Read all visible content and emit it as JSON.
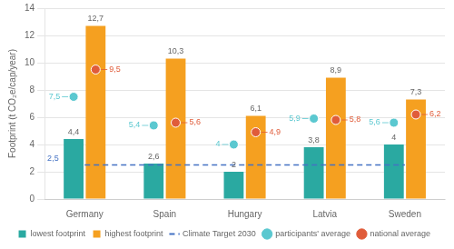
{
  "chart_data": {
    "type": "bar",
    "categories": [
      "Germany",
      "Spain",
      "Hungary",
      "Latvia",
      "Sweden"
    ],
    "series": [
      {
        "name": "lowest footprint",
        "type": "bar",
        "color": "#2aa9a1",
        "values": [
          4.4,
          2.6,
          2.0,
          3.8,
          4.0
        ],
        "value_labels": [
          "4,4",
          "2,6",
          "2",
          "3,8",
          "4"
        ]
      },
      {
        "name": "highest footprint",
        "type": "bar",
        "color": "#f5a020",
        "values": [
          12.7,
          10.3,
          6.1,
          8.9,
          7.3
        ],
        "value_labels": [
          "12,7",
          "10,3",
          "6,1",
          "8,9",
          "7,3"
        ]
      },
      {
        "name": "Climate Target 2030",
        "type": "line",
        "line_style": "dashed",
        "color": "#4472c4",
        "values": [
          2.5,
          2.5,
          2.5,
          2.5,
          2.5
        ]
      },
      {
        "name": "participants' average",
        "type": "scatter",
        "marker": "circle",
        "color": "#5bc8d0",
        "values": [
          7.5,
          5.4,
          4.0,
          5.9,
          5.6
        ],
        "value_labels": [
          "7,5",
          "5,4",
          "4",
          "5,9",
          "5,6"
        ]
      },
      {
        "name": "national average",
        "type": "scatter",
        "marker": "circle",
        "color": "#e05c3a",
        "values": [
          9.5,
          5.6,
          4.9,
          5.8,
          6.2
        ],
        "value_labels": [
          "9,5",
          "5,6",
          "4,9",
          "5,8",
          "6,2"
        ]
      }
    ],
    "annotations": [
      {
        "text": "2,5",
        "y": 2.5
      }
    ],
    "y_label": "Footprint (t CO₂e/cap/year)",
    "ylim": [
      0,
      14
    ],
    "yticks": [
      0,
      2,
      4,
      6,
      8,
      10,
      12,
      14
    ],
    "grid": true,
    "legend": "bottom",
    "data_labels": true
  }
}
